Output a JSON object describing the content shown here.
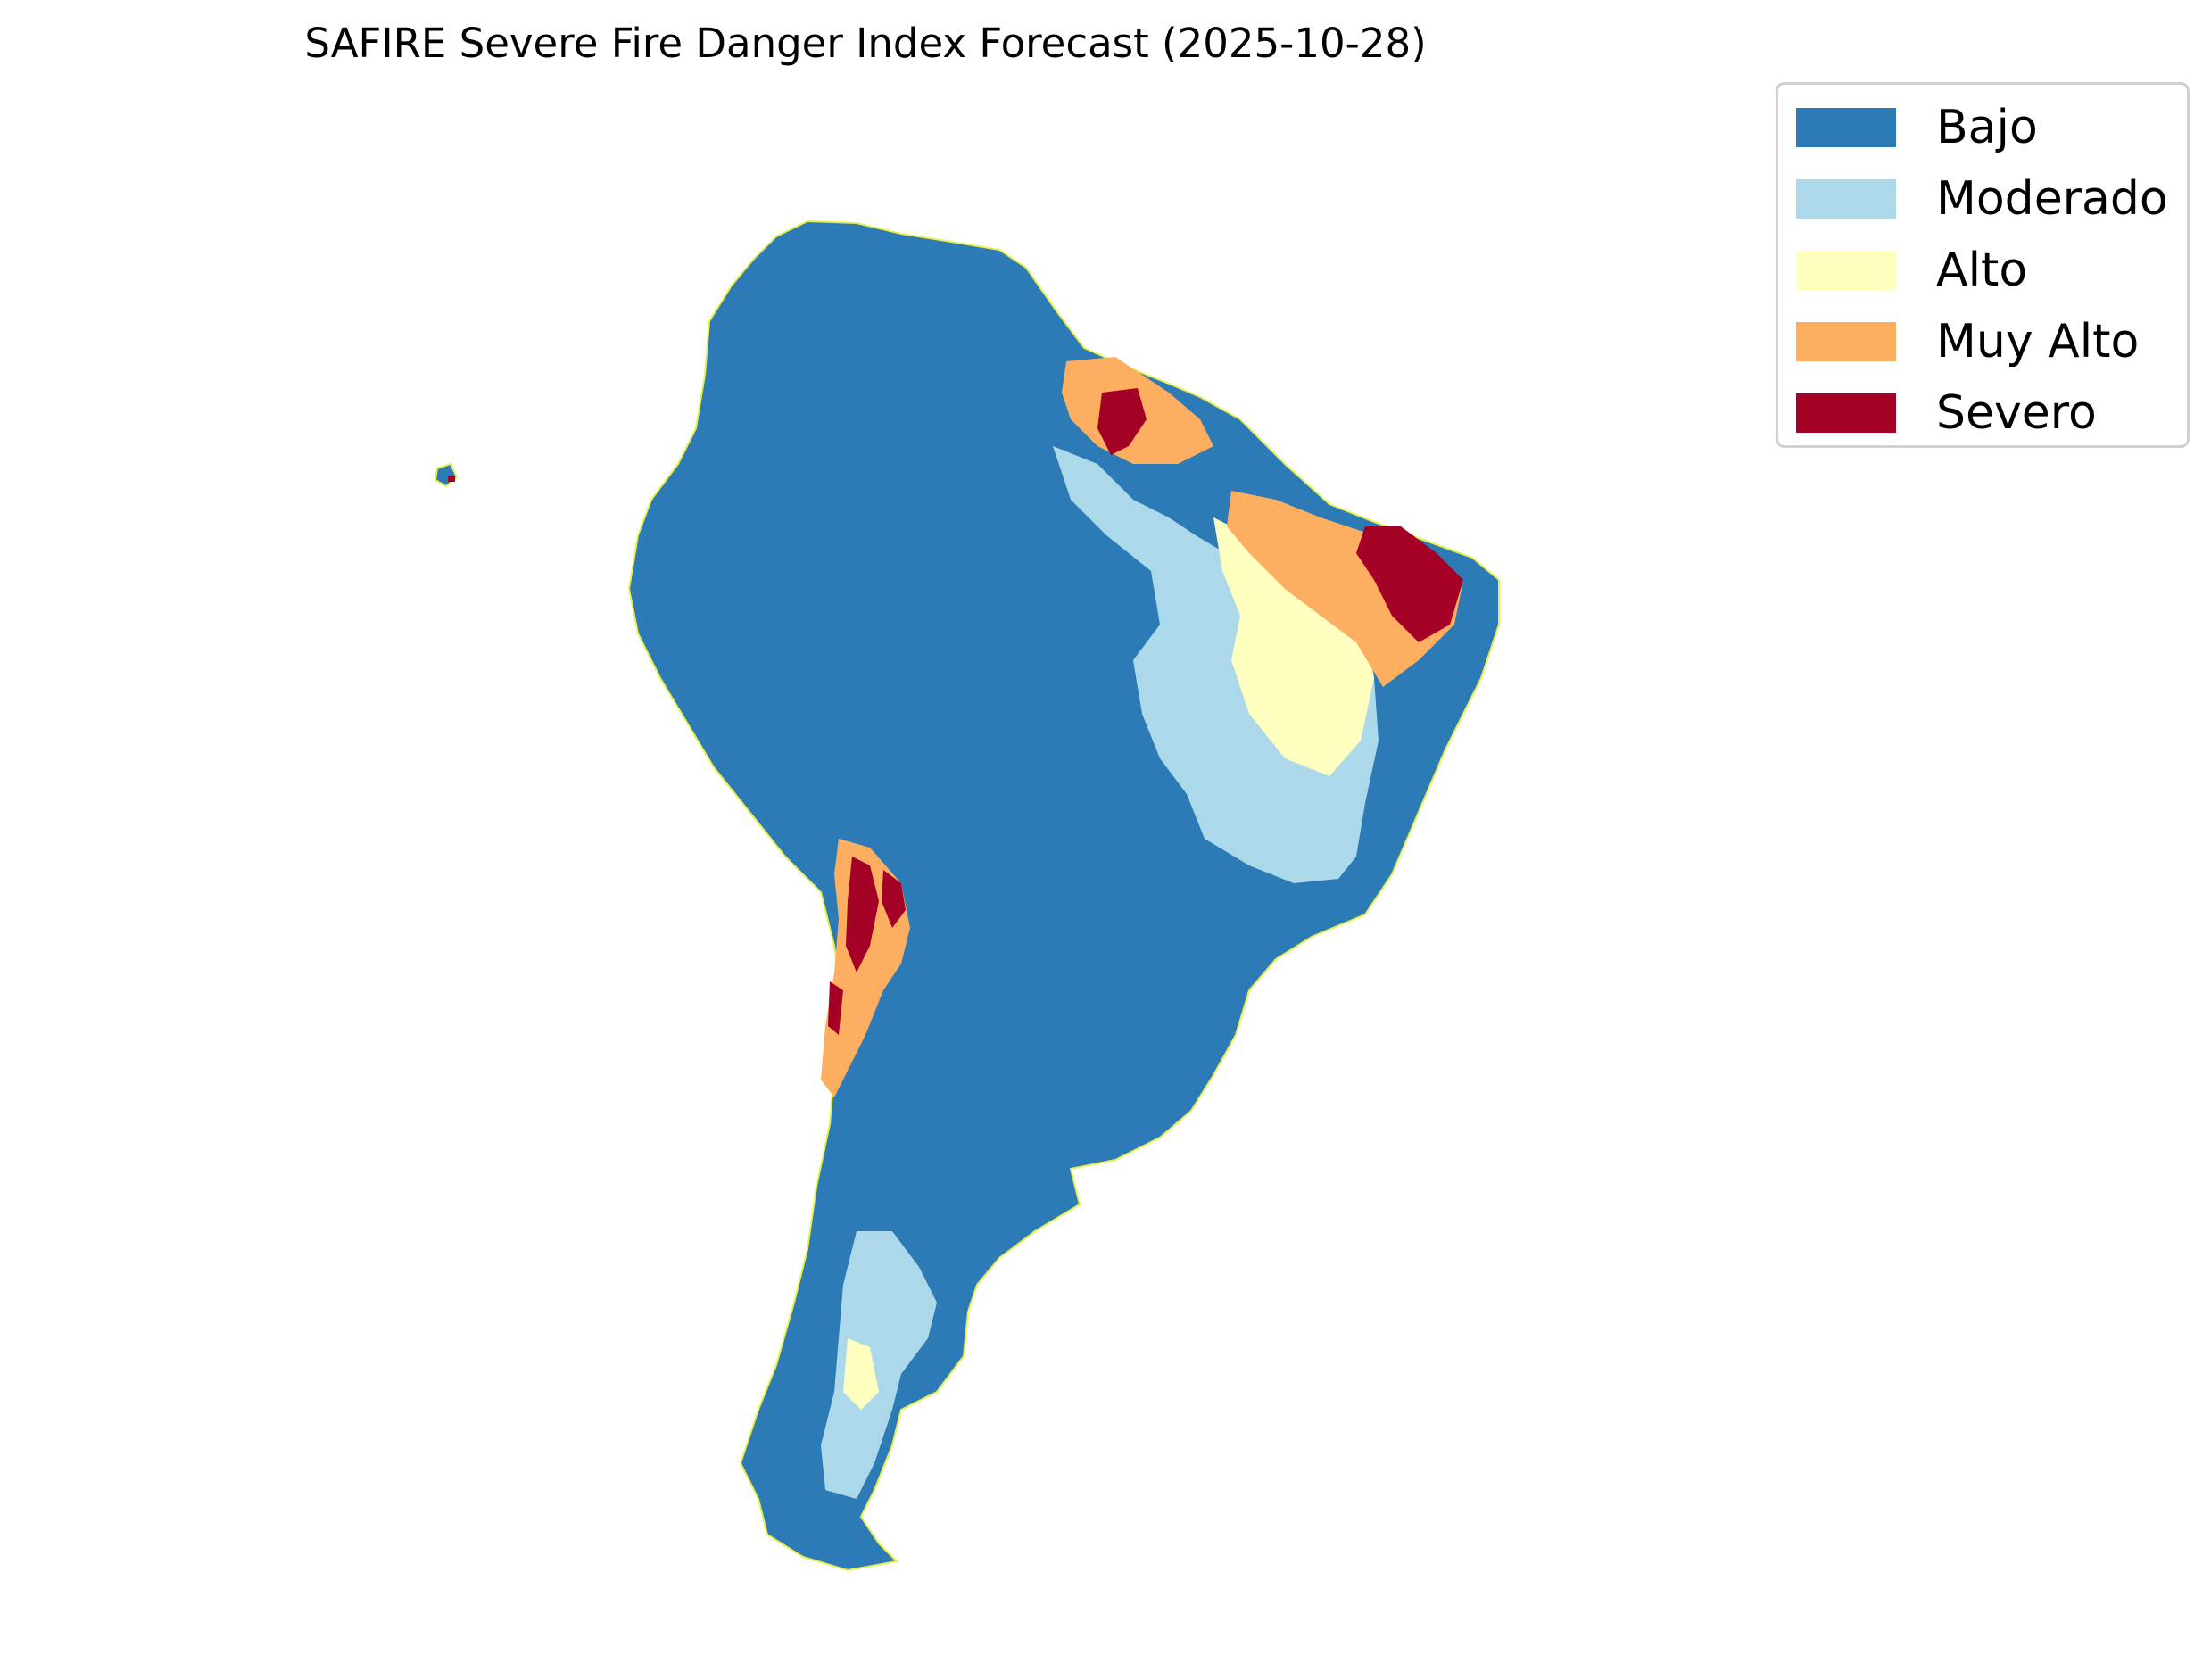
{
  "title": "SAFIRE Severe Fire Danger Index Forecast (2025-10-28)",
  "legend": {
    "items": [
      {
        "label": "Bajo",
        "color": "#2c7bb6"
      },
      {
        "label": "Moderado",
        "color": "#abd9e9"
      },
      {
        "label": "Alto",
        "color": "#ffffbf"
      },
      {
        "label": "Muy Alto",
        "color": "#fdae61"
      },
      {
        "label": "Severo",
        "color": "#a50026"
      }
    ]
  },
  "map": {
    "region": "South America",
    "border_color": "#e6f04a"
  }
}
